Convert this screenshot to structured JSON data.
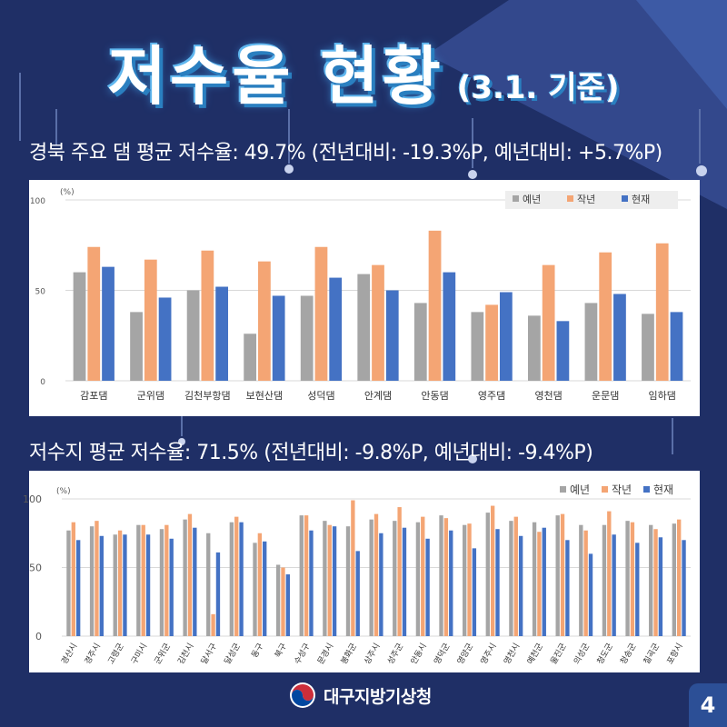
{
  "title": {
    "main": "저수율 현황",
    "sub": "(3.1. 기준)"
  },
  "footer": {
    "org": "대구지방기상청",
    "page": "4"
  },
  "colors": {
    "normal": "#a5a5a5",
    "last_year": "#f4a574",
    "current": "#4472c4",
    "background": "#1f2f66"
  },
  "chart_data": [
    {
      "type": "bar",
      "heading": "경북 주요 댐 평균 저수율: 49.7% (전년대비: -19.3%P, 예년대비: +5.7%P)",
      "unit": "(%)",
      "ylim": [
        0,
        100
      ],
      "yticks": [
        "0",
        "50",
        "100"
      ],
      "legend_position": "top-right",
      "categories": [
        "감포댐",
        "군위댐",
        "김천부항댐",
        "보현산댐",
        "성덕댐",
        "안계댐",
        "안동댐",
        "영주댐",
        "영천댐",
        "운문댐",
        "임하댐"
      ],
      "series": [
        {
          "name": "예년",
          "values": [
            60,
            38,
            50,
            26,
            47,
            59,
            43,
            38,
            36,
            43,
            37
          ]
        },
        {
          "name": "작년",
          "values": [
            74,
            67,
            72,
            66,
            74,
            64,
            83,
            42,
            64,
            71,
            76
          ]
        },
        {
          "name": "현재",
          "values": [
            63,
            46,
            52,
            47,
            57,
            50,
            60,
            49,
            33,
            48,
            38
          ]
        }
      ]
    },
    {
      "type": "bar",
      "heading": "저수지 평균 저수율: 71.5% (전년대비: -9.8%P, 예년대비: -9.4%P)",
      "unit": "(%)",
      "ylim": [
        0,
        100
      ],
      "yticks": [
        "0",
        "50",
        "100"
      ],
      "legend_position": "top-right",
      "categories": [
        "경산시",
        "경주시",
        "고령군",
        "구미시",
        "군위군",
        "김천시",
        "달서구",
        "달성군",
        "동구",
        "북구",
        "수성구",
        "문경시",
        "봉화군",
        "상주시",
        "성주군",
        "안동시",
        "영덕군",
        "영양군",
        "영주시",
        "영천시",
        "예천군",
        "울진군",
        "의성군",
        "청도군",
        "청송군",
        "칠곡군",
        "포항시"
      ],
      "series": [
        {
          "name": "예년",
          "values": [
            77,
            80,
            74,
            81,
            78,
            85,
            75,
            83,
            68,
            52,
            88,
            84,
            80,
            85,
            84,
            83,
            88,
            81,
            90,
            84,
            83,
            88,
            81,
            81,
            84,
            81,
            82
          ]
        },
        {
          "name": "작년",
          "values": [
            83,
            84,
            77,
            81,
            81,
            89,
            16,
            87,
            75,
            50,
            88,
            81,
            99,
            89,
            94,
            87,
            86,
            82,
            95,
            87,
            76,
            89,
            77,
            91,
            83,
            78,
            85
          ]
        },
        {
          "name": "현재",
          "values": [
            70,
            73,
            74,
            74,
            71,
            79,
            61,
            83,
            69,
            45,
            77,
            80,
            62,
            75,
            79,
            71,
            77,
            64,
            78,
            73,
            79,
            70,
            60,
            74,
            68,
            72,
            70
          ]
        }
      ]
    }
  ]
}
